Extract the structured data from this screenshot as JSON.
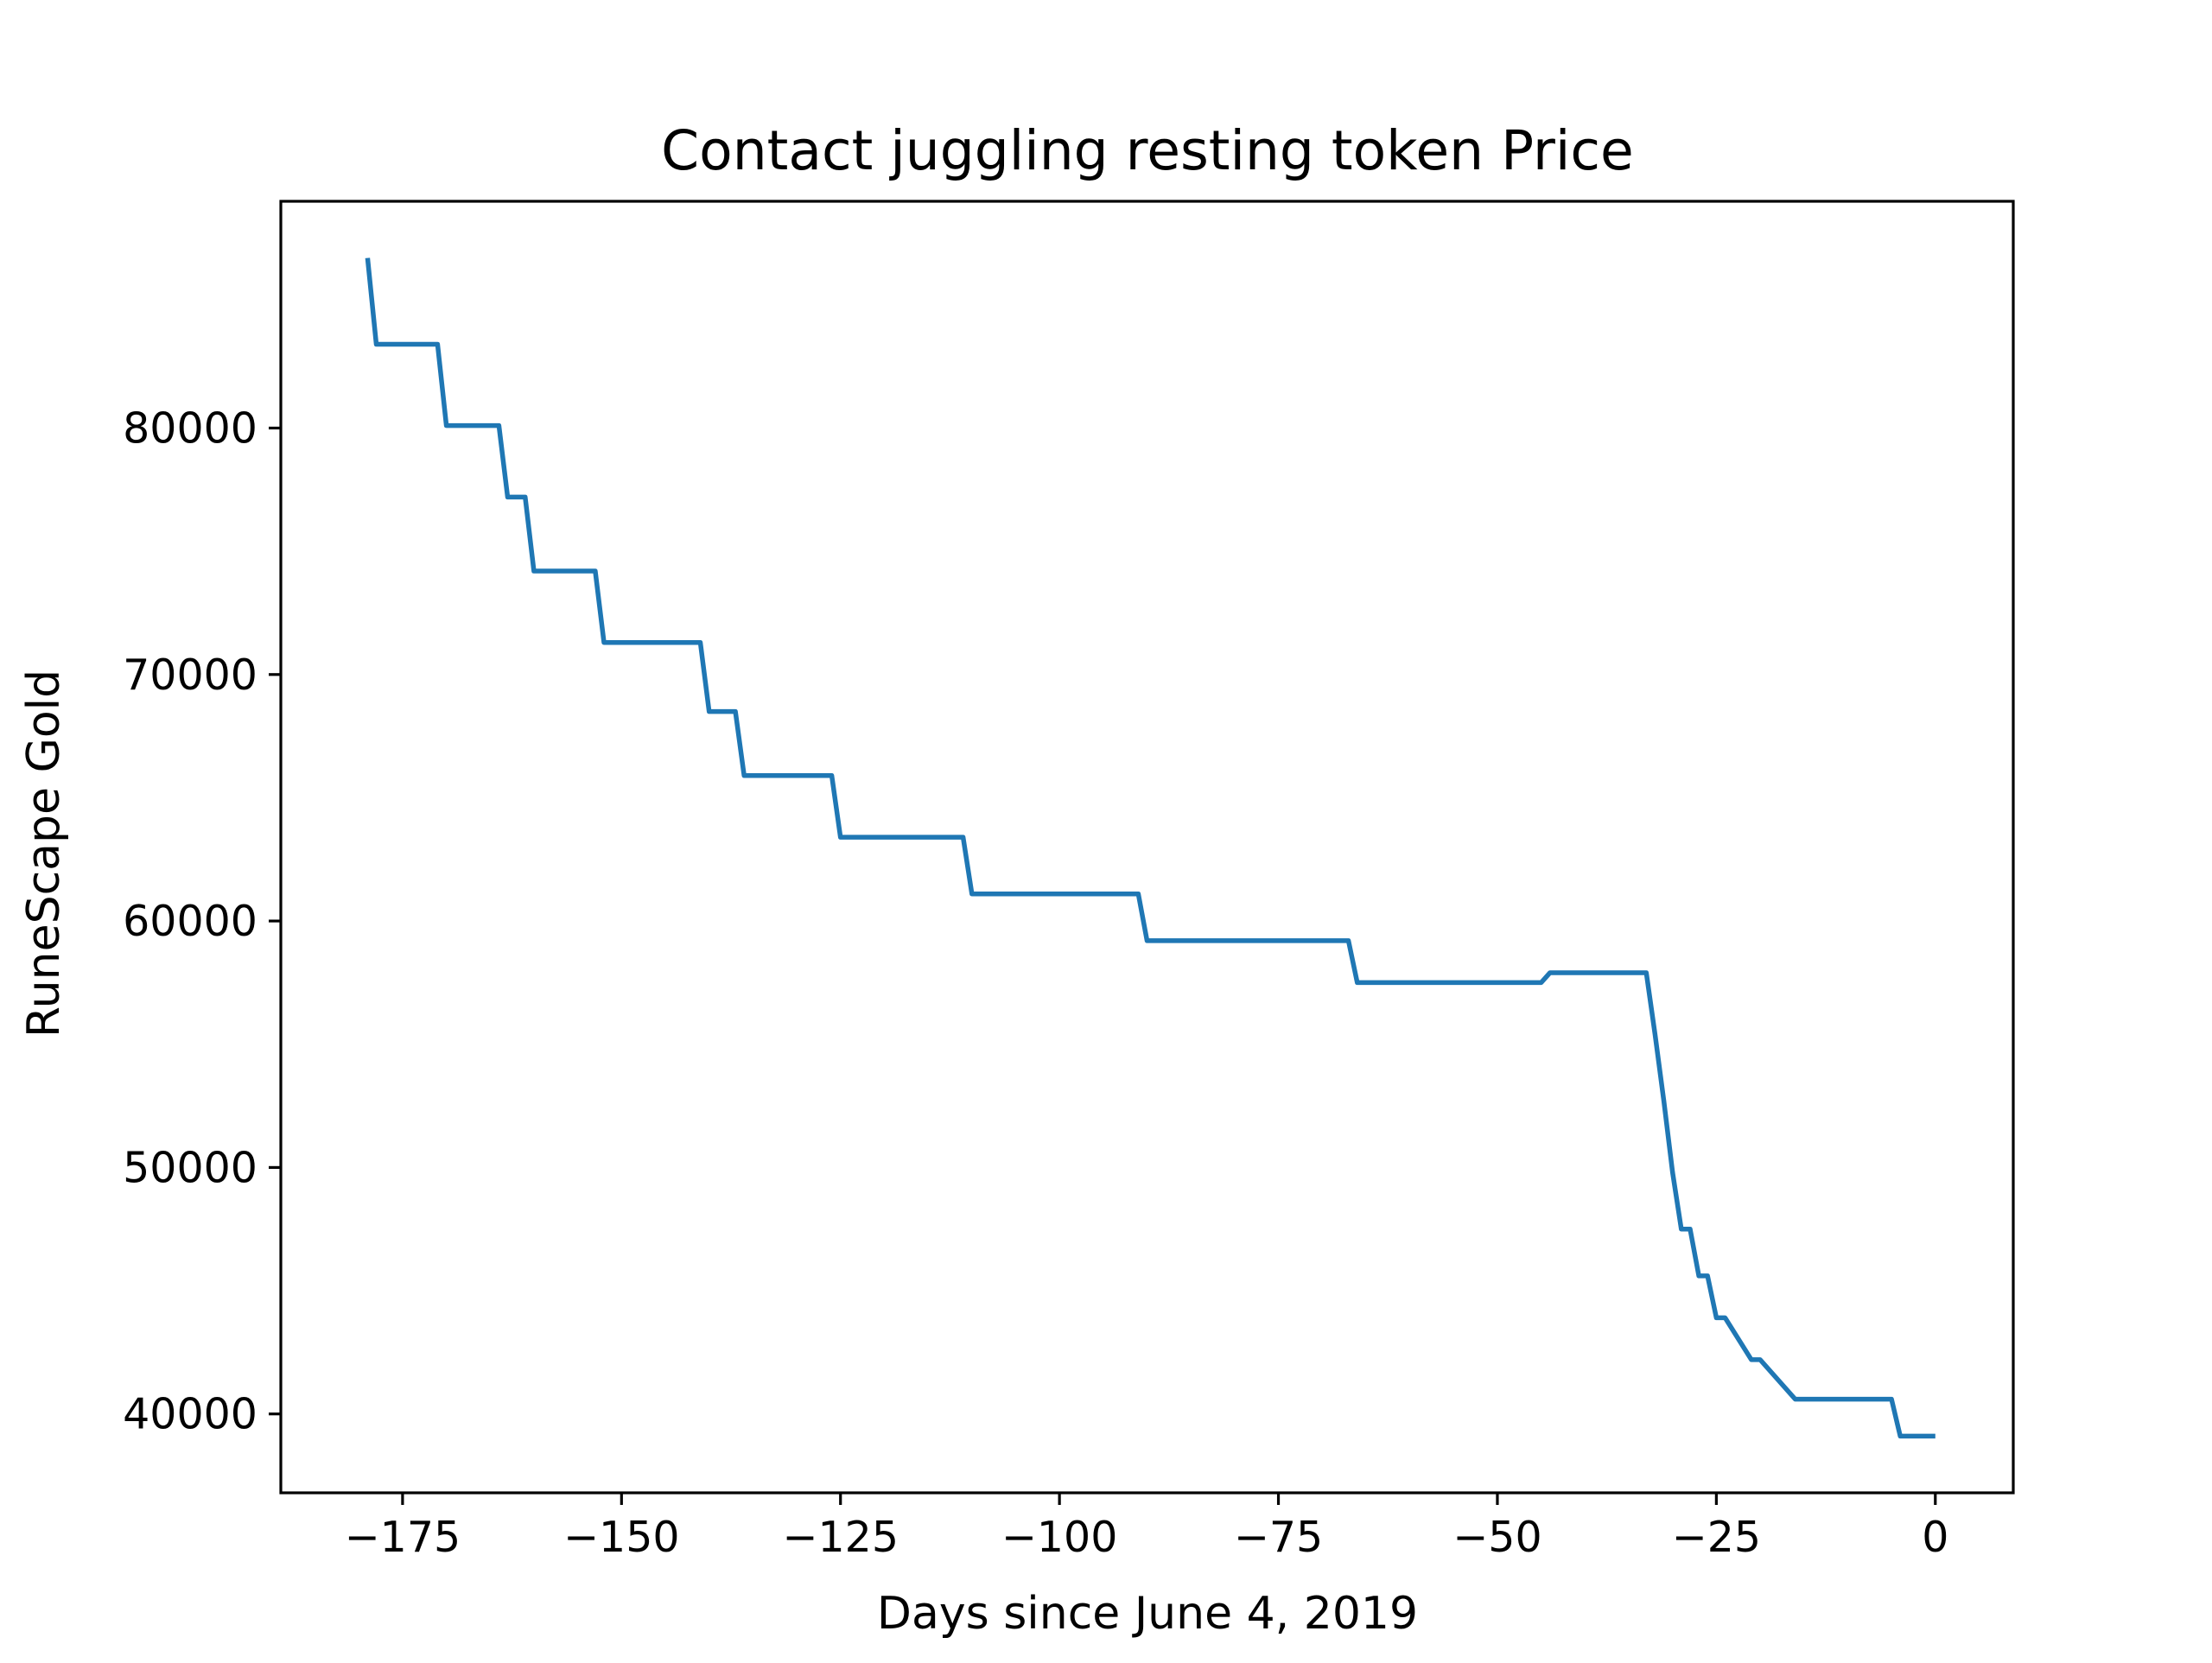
{
  "chart_data": {
    "type": "line",
    "title": "Contact juggling resting token Price",
    "xlabel": "Days since June 4, 2019",
    "ylabel": "RuneScape Gold",
    "xlim": [
      -188.9,
      8.9
    ],
    "ylim": [
      36800,
      89200
    ],
    "grid": false,
    "legend": "none",
    "x_ticks": [
      -175,
      -150,
      -125,
      -100,
      -75,
      -50,
      -25,
      0
    ],
    "x_tick_labels": [
      "−175",
      "−150",
      "−125",
      "−100",
      "−75",
      "−50",
      "−25",
      "0"
    ],
    "y_ticks": [
      40000,
      50000,
      60000,
      70000,
      80000
    ],
    "y_tick_labels": [
      "40000",
      "50000",
      "60000",
      "70000",
      "80000"
    ],
    "series": [
      {
        "color": "#1f77b4",
        "x": [
          -179,
          -178,
          -171,
          -170,
          -164,
          -163,
          -161,
          -160,
          -153,
          -152,
          -141,
          -140,
          -137,
          -136,
          -126,
          -125,
          -111,
          -110,
          -91,
          -90,
          -67,
          -66,
          -45,
          -44,
          -33,
          -32,
          -31,
          -30,
          -29,
          -28,
          -27,
          -26,
          -25,
          -24,
          -21,
          -20,
          -16,
          -15,
          -5,
          -4,
          0
        ],
        "y": [
          86900,
          83400,
          83400,
          80100,
          80100,
          77200,
          77200,
          74200,
          74200,
          71300,
          71300,
          68500,
          68500,
          65900,
          65900,
          63400,
          63400,
          61100,
          61100,
          59200,
          59200,
          57500,
          57500,
          57900,
          57900,
          55400,
          52700,
          49800,
          47500,
          47500,
          45600,
          45600,
          43900,
          43900,
          42200,
          42200,
          40600,
          40600,
          40600,
          39100,
          39100
        ]
      }
    ]
  }
}
